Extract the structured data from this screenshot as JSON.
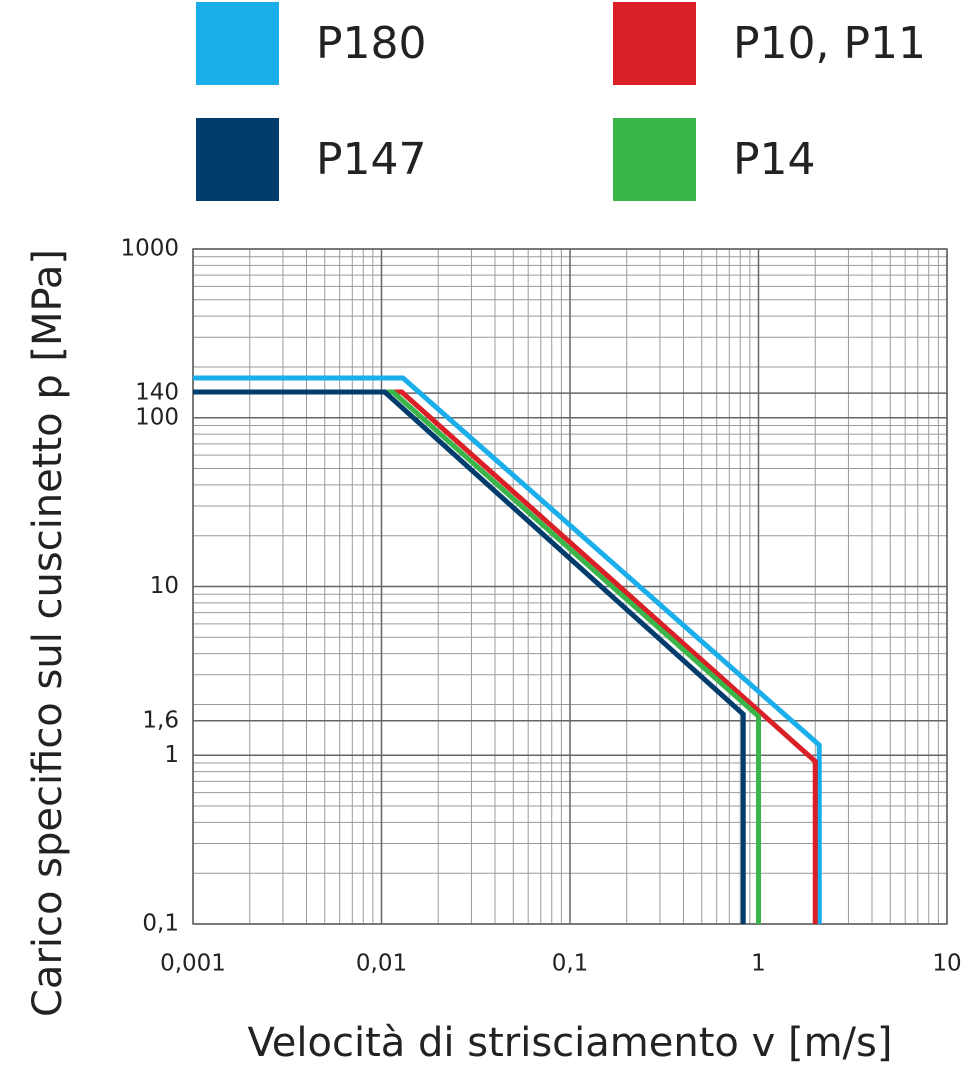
{
  "chart_data": {
    "type": "line",
    "x_label": "Velocità di strisciamento v [m/s]",
    "y_label": "Carico specifico sul cuscinetto p [MPa]",
    "x_log": true,
    "y_log": true,
    "grid": true,
    "minor_grid": true,
    "xlim": [
      0.001,
      10
    ],
    "ylim": [
      0.1,
      1000
    ],
    "xticks": [
      {
        "value": 0.001,
        "label": "0,001"
      },
      {
        "value": 0.01,
        "label": "0,01"
      },
      {
        "value": 0.1,
        "label": "0,1"
      },
      1,
      10
    ],
    "yticks": [
      {
        "value": 0.1,
        "label": "0,1"
      },
      1,
      {
        "value": 1.6,
        "label": "1,6"
      },
      10,
      100,
      140,
      1000
    ],
    "legend": "top",
    "series": [
      {
        "name": "P180",
        "color": "#1aaeea",
        "x": [
          0.001,
          0.013,
          2.1,
          2.1
        ],
        "values": [
          172,
          172,
          1.15,
          0.1
        ]
      },
      {
        "name": "P10, P11",
        "color": "#da1f26",
        "x": [
          0.001,
          0.0128,
          2.0,
          2.0
        ],
        "values": [
          142,
          142,
          0.92,
          0.1
        ]
      },
      {
        "name": "P14",
        "color": "#3ab54a",
        "x": [
          0.001,
          0.0115,
          1.0,
          1.0
        ],
        "values": [
          142,
          142,
          1.7,
          0.1
        ]
      },
      {
        "name": "P147",
        "color": "#003c6c",
        "x": [
          0.001,
          0.0104,
          0.83,
          0.83
        ],
        "values": [
          142,
          142,
          1.75,
          0.1
        ]
      }
    ]
  }
}
